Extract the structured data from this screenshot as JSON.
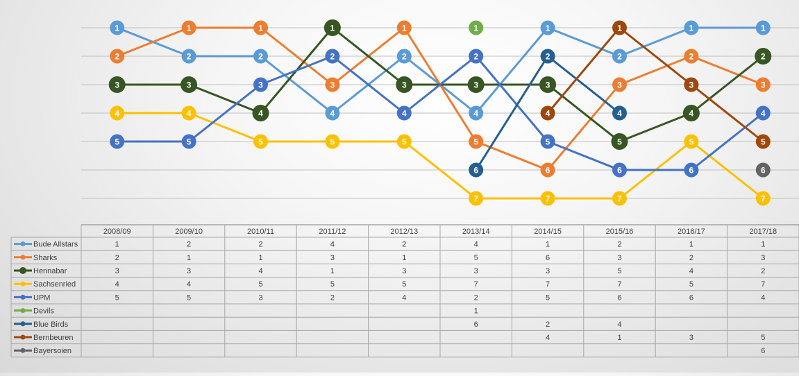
{
  "chart_data": {
    "type": "line",
    "title": "",
    "xlabel": "",
    "ylabel": "",
    "y_inverted": true,
    "ylim": [
      1,
      7
    ],
    "grid": true,
    "legend_placement": "data-table-left",
    "categories": [
      "2008/09",
      "2009/10",
      "2010/11",
      "2011/12",
      "2012/13",
      "2013/14",
      "2014/15",
      "2015/16",
      "2016/17",
      "2017/18"
    ],
    "series": [
      {
        "name": "Bude Allstars",
        "color": "#5B9BD5",
        "values": [
          1,
          2,
          2,
          4,
          2,
          4,
          1,
          2,
          1,
          1
        ]
      },
      {
        "name": "Sharks",
        "color": "#ED7D31",
        "values": [
          2,
          1,
          1,
          3,
          1,
          5,
          6,
          3,
          2,
          3
        ]
      },
      {
        "name": "Hennabar",
        "color": "#375623",
        "values": [
          3,
          3,
          4,
          1,
          3,
          3,
          3,
          5,
          4,
          2
        ]
      },
      {
        "name": "Sachsenried",
        "color": "#FFC000",
        "values": [
          4,
          4,
          5,
          5,
          5,
          7,
          7,
          7,
          5,
          7
        ]
      },
      {
        "name": "UPM",
        "color": "#4472C4",
        "values": [
          5,
          5,
          3,
          2,
          4,
          2,
          5,
          6,
          6,
          4
        ]
      },
      {
        "name": "Devils",
        "color": "#70AD47",
        "values": [
          null,
          null,
          null,
          null,
          null,
          1,
          null,
          null,
          null,
          null
        ]
      },
      {
        "name": "Blue Birds",
        "color": "#255E91",
        "values": [
          null,
          null,
          null,
          null,
          null,
          6,
          2,
          4,
          null,
          null
        ]
      },
      {
        "name": "Bernbeuren",
        "color": "#9E480E",
        "values": [
          null,
          null,
          null,
          null,
          null,
          null,
          4,
          1,
          3,
          5
        ]
      },
      {
        "name": "Bayersoien",
        "color": "#636363",
        "values": [
          null,
          null,
          null,
          null,
          null,
          null,
          null,
          null,
          null,
          6
        ]
      }
    ]
  }
}
